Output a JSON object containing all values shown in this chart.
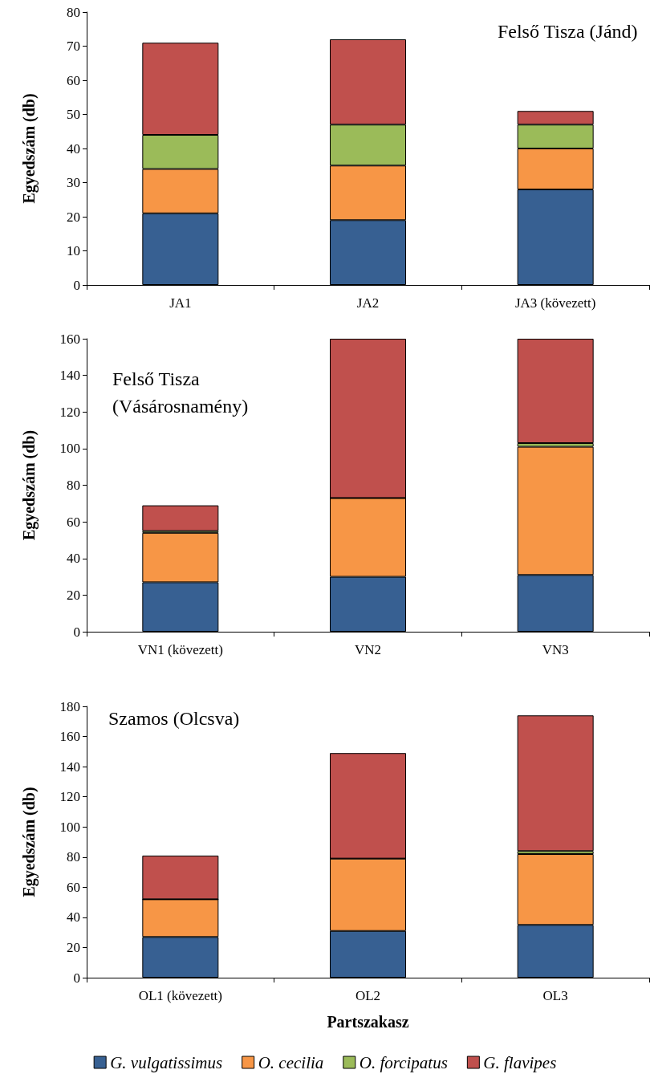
{
  "chart_data": [
    {
      "type": "bar",
      "stacked": true,
      "ylabel": "Egyedszám (db)",
      "annotations": [
        "Felső Tisza (Jánd)"
      ],
      "categories": [
        "JA1",
        "JA2",
        "JA3 (kövezett)"
      ],
      "ylim": [
        0,
        80
      ],
      "yticks": [
        0,
        10,
        20,
        30,
        40,
        50,
        60,
        70,
        80
      ],
      "grid": false,
      "legend": false,
      "series": [
        {
          "color": "#376092",
          "values": [
            21,
            19,
            28
          ]
        },
        {
          "color": "#f79646",
          "values": [
            13,
            16,
            12
          ]
        },
        {
          "color": "#9bbb59",
          "values": [
            10,
            12,
            7
          ]
        },
        {
          "color": "#c0504d",
          "values": [
            27,
            25,
            4
          ]
        }
      ]
    },
    {
      "type": "bar",
      "stacked": true,
      "ylabel": "Egyedszám (db)",
      "annotations": [
        "Felső Tisza\n(Vásárosnamény)"
      ],
      "categories": [
        "VN1 (kövezett)",
        "VN2",
        "VN3"
      ],
      "ylim": [
        0,
        160
      ],
      "yticks": [
        0,
        20,
        40,
        60,
        80,
        100,
        120,
        140,
        160
      ],
      "grid": false,
      "legend": false,
      "series": [
        {
          "color": "#376092",
          "values": [
            27,
            30,
            31
          ]
        },
        {
          "color": "#f79646",
          "values": [
            27,
            43,
            70
          ]
        },
        {
          "color": "#9bbb59",
          "values": [
            1,
            0,
            2
          ]
        },
        {
          "color": "#c0504d",
          "values": [
            14,
            87,
            57
          ]
        }
      ]
    },
    {
      "type": "bar",
      "stacked": true,
      "ylabel": "Egyedszám (db)",
      "xlabel": "Partszakasz",
      "annotations": [
        "Szamos (Olcsva)"
      ],
      "categories": [
        "OL1 (kövezett)",
        "OL2",
        "OL3"
      ],
      "ylim": [
        0,
        180
      ],
      "yticks": [
        0,
        20,
        40,
        60,
        80,
        100,
        120,
        140,
        160,
        180
      ],
      "grid": false,
      "legend": "bottom",
      "series": [
        {
          "name": "G. vulgatissimus",
          "color": "#376092",
          "values": [
            27,
            31,
            35
          ]
        },
        {
          "name": "O. cecilia",
          "color": "#f79646",
          "values": [
            25,
            48,
            47
          ]
        },
        {
          "name": "O. forcipatus",
          "color": "#9bbb59",
          "values": [
            0,
            0,
            2
          ]
        },
        {
          "name": "G. flavipes",
          "color": "#c0504d",
          "values": [
            29,
            70,
            90
          ]
        }
      ]
    }
  ]
}
